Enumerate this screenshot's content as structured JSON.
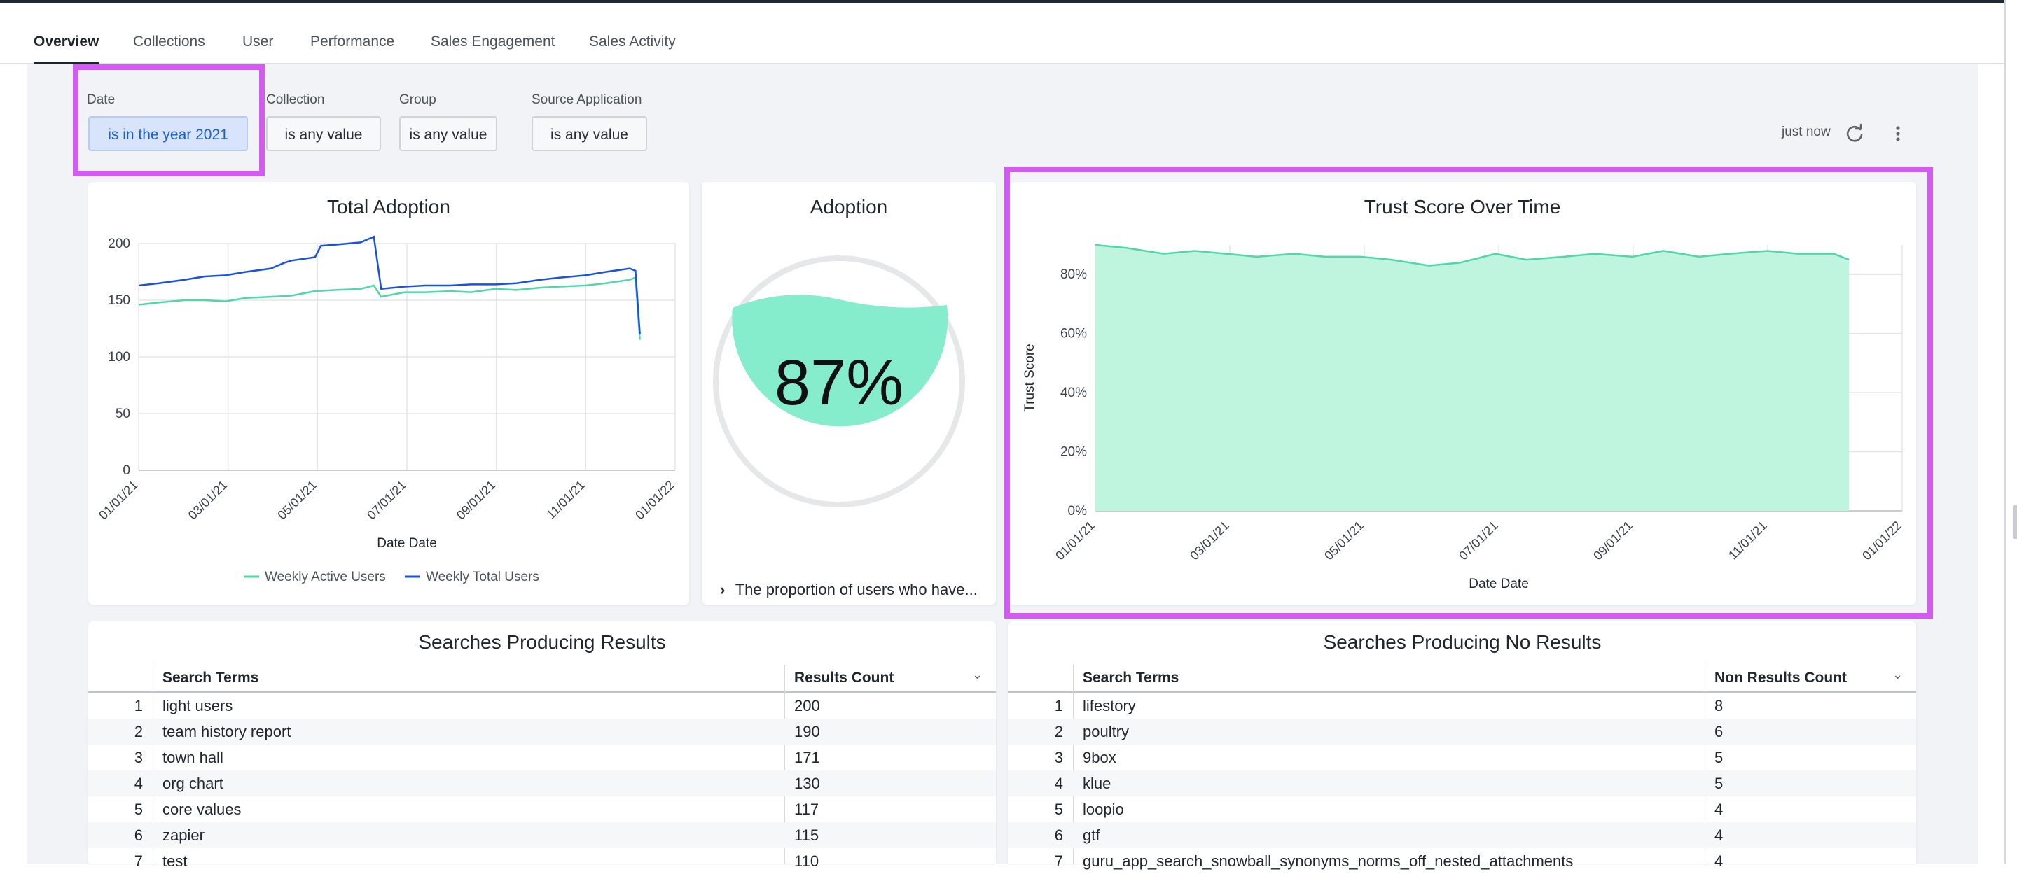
{
  "tabs": [
    "Overview",
    "Collections",
    "User",
    "Performance",
    "Sales Engagement",
    "Sales Activity"
  ],
  "active_tab": "Overview",
  "filters": [
    {
      "label": "Date",
      "value": "is in the year 2021",
      "active": true
    },
    {
      "label": "Collection",
      "value": "is any value",
      "active": false
    },
    {
      "label": "Group",
      "value": "is any value",
      "active": false
    },
    {
      "label": "Source Application",
      "value": "is any value",
      "active": false
    }
  ],
  "last_updated": "just now",
  "icons": {
    "refresh": "refresh-icon",
    "menu": "kebab-menu-icon",
    "expand": "chevron-right-icon",
    "sort": "chevron-down-icon"
  },
  "colors": {
    "highlight": "#d35cf0",
    "weekly_active": "#4fd8a6",
    "weekly_total": "#1a52e0",
    "trust_fill": "#bff4de",
    "trust_line": "#4fd8a6",
    "gauge_fill": "#86edcc"
  },
  "adoption": {
    "title": "Adoption",
    "value_label": "87%",
    "description": "The proportion of users who have..."
  },
  "chart_data": [
    {
      "type": "line",
      "title": "Total Adoption",
      "xlabel": "Date Date",
      "ylabel": "",
      "x_ticks": [
        "01/01/21",
        "03/01/21",
        "05/01/21",
        "07/01/21",
        "09/01/21",
        "11/01/21",
        "01/01/22"
      ],
      "y_ticks": [
        0,
        50,
        100,
        150,
        200
      ],
      "ylim": [
        0,
        200
      ],
      "xlim": [
        "2021-01-01",
        "2022-01-01"
      ],
      "legend": "bottom",
      "series": [
        {
          "name": "Weekly Active Users",
          "x": [
            "2021-01-01",
            "2021-01-15",
            "2021-02-01",
            "2021-02-15",
            "2021-03-01",
            "2021-03-15",
            "2021-04-01",
            "2021-04-15",
            "2021-05-01",
            "2021-05-15",
            "2021-06-01",
            "2021-06-10",
            "2021-06-15",
            "2021-07-01",
            "2021-07-15",
            "2021-08-01",
            "2021-08-15",
            "2021-09-01",
            "2021-09-15",
            "2021-10-01",
            "2021-10-15",
            "2021-11-01",
            "2021-11-15",
            "2021-12-01",
            "2021-12-05",
            "2021-12-08"
          ],
          "values": [
            146,
            148,
            150,
            150,
            149,
            152,
            153,
            154,
            158,
            159,
            160,
            163,
            153,
            157,
            157,
            158,
            157,
            160,
            159,
            161,
            162,
            163,
            165,
            168,
            170,
            115
          ]
        },
        {
          "name": "Weekly Total Users",
          "x": [
            "2021-01-01",
            "2021-01-15",
            "2021-02-01",
            "2021-02-15",
            "2021-03-01",
            "2021-03-15",
            "2021-04-01",
            "2021-04-10",
            "2021-04-15",
            "2021-05-01",
            "2021-05-05",
            "2021-05-15",
            "2021-06-01",
            "2021-06-10",
            "2021-06-15",
            "2021-07-01",
            "2021-07-15",
            "2021-08-01",
            "2021-08-15",
            "2021-09-01",
            "2021-09-15",
            "2021-10-01",
            "2021-10-15",
            "2021-11-01",
            "2021-11-15",
            "2021-12-01",
            "2021-12-05",
            "2021-12-08"
          ],
          "values": [
            163,
            165,
            168,
            171,
            172,
            175,
            178,
            183,
            185,
            188,
            198,
            199,
            201,
            206,
            160,
            162,
            163,
            163,
            164,
            164,
            165,
            168,
            170,
            172,
            175,
            178,
            176,
            120
          ]
        }
      ]
    },
    {
      "type": "area",
      "title": "Trust Score Over Time",
      "xlabel": "Date Date",
      "ylabel": "Trust Score",
      "x_ticks": [
        "01/01/21",
        "03/01/21",
        "05/01/21",
        "07/01/21",
        "09/01/21",
        "11/01/21",
        "01/01/22"
      ],
      "y_ticks": [
        "0%",
        "20%",
        "40%",
        "60%",
        "80%"
      ],
      "ylim": [
        0,
        90
      ],
      "xlim": [
        "2021-01-01",
        "2022-01-01"
      ],
      "grid": true,
      "series": [
        {
          "name": "",
          "x": [
            "2021-01-01",
            "2021-01-15",
            "2021-02-01",
            "2021-02-15",
            "2021-03-01",
            "2021-03-15",
            "2021-04-01",
            "2021-04-15",
            "2021-05-01",
            "2021-05-15",
            "2021-06-01",
            "2021-06-15",
            "2021-07-01",
            "2021-07-15",
            "2021-08-01",
            "2021-08-15",
            "2021-09-01",
            "2021-09-15",
            "2021-10-01",
            "2021-10-15",
            "2021-11-01",
            "2021-11-15",
            "2021-12-01",
            "2021-12-08"
          ],
          "values": [
            90,
            89,
            87,
            88,
            87,
            86,
            87,
            86,
            86,
            85,
            83,
            84,
            87,
            85,
            86,
            87,
            86,
            88,
            86,
            87,
            88,
            87,
            87,
            85
          ]
        }
      ]
    }
  ],
  "results_table": {
    "title": "Searches Producing Results",
    "columns": [
      "Search Terms",
      "Results Count"
    ],
    "rows": [
      [
        "1",
        "light users",
        "200"
      ],
      [
        "2",
        "team history report",
        "190"
      ],
      [
        "3",
        "town hall",
        "171"
      ],
      [
        "4",
        "org chart",
        "130"
      ],
      [
        "5",
        "core values",
        "117"
      ],
      [
        "6",
        "zapier",
        "115"
      ],
      [
        "7",
        "test",
        "110"
      ]
    ]
  },
  "no_results_table": {
    "title": "Searches Producing No Results",
    "columns": [
      "Search Terms",
      "Non Results Count"
    ],
    "rows": [
      [
        "1",
        "lifestory",
        "8"
      ],
      [
        "2",
        "poultry",
        "6"
      ],
      [
        "3",
        "9box",
        "5"
      ],
      [
        "4",
        "klue",
        "5"
      ],
      [
        "5",
        "loopio",
        "4"
      ],
      [
        "6",
        "gtf",
        "4"
      ],
      [
        "7",
        "guru_app_search_snowball_synonyms_norms_off_nested_attachments",
        "4"
      ]
    ]
  }
}
